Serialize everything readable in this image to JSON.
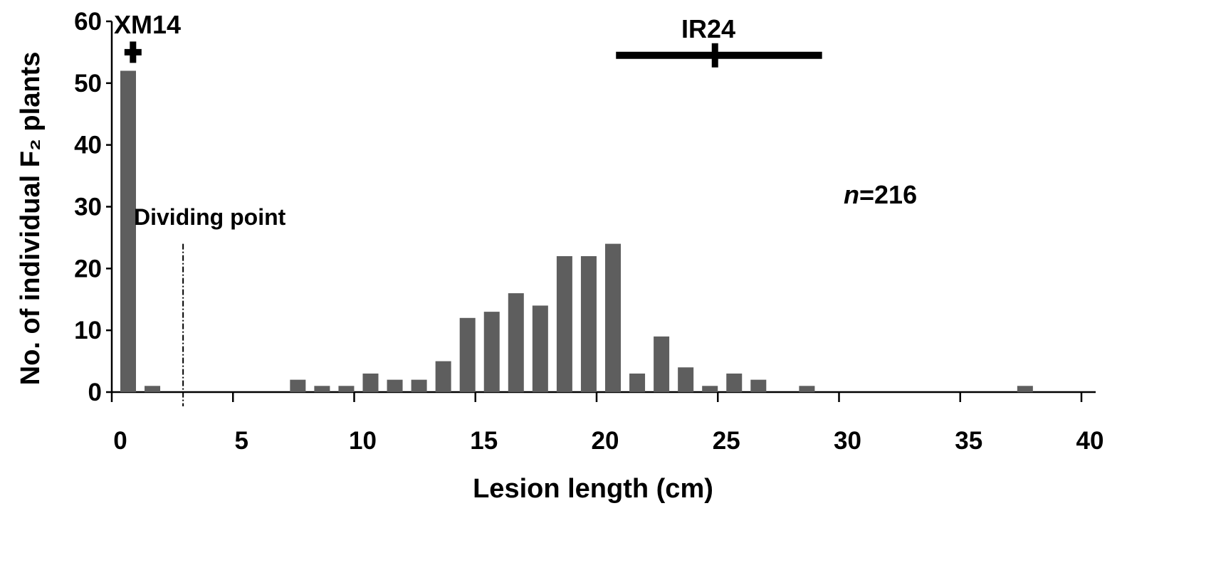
{
  "chart_data": {
    "type": "bar",
    "xlabel": "Lesion length (cm)",
    "ylabel": "No. of individual  F₂ plants",
    "xlim": [
      0,
      40
    ],
    "ylim": [
      0,
      60
    ],
    "x_ticks": [
      "0",
      "5",
      "10",
      "15",
      "20",
      "25",
      "30",
      "35",
      "40"
    ],
    "y_ticks": [
      "0",
      "10",
      "20",
      "30",
      "40",
      "50",
      "60"
    ],
    "bar_color": "#5e5e5e",
    "x": [
      0,
      1,
      7,
      8,
      9,
      10,
      11,
      12,
      13,
      14,
      15,
      16,
      17,
      18,
      19,
      20,
      21,
      22,
      23,
      24,
      25,
      26,
      28,
      37
    ],
    "values": [
      52,
      1,
      2,
      1,
      1,
      3,
      2,
      2,
      5,
      12,
      13,
      16,
      14,
      22,
      22,
      24,
      3,
      9,
      4,
      1,
      3,
      2,
      1,
      1
    ],
    "grid": false,
    "annotations": {
      "xm14_label": "XM14",
      "ir24_label": "IR24",
      "n_italic": "n",
      "n_value": "=216",
      "dividing_label": "Dividing point"
    },
    "parents": {
      "xm14": {
        "mean": 0.2,
        "low": 0.2,
        "high": 0.2,
        "y": 55
      },
      "ir24": {
        "mean": 25,
        "low": 20.8,
        "high": 29.3,
        "y": 54.5
      }
    },
    "dividing_point_x": 3
  }
}
